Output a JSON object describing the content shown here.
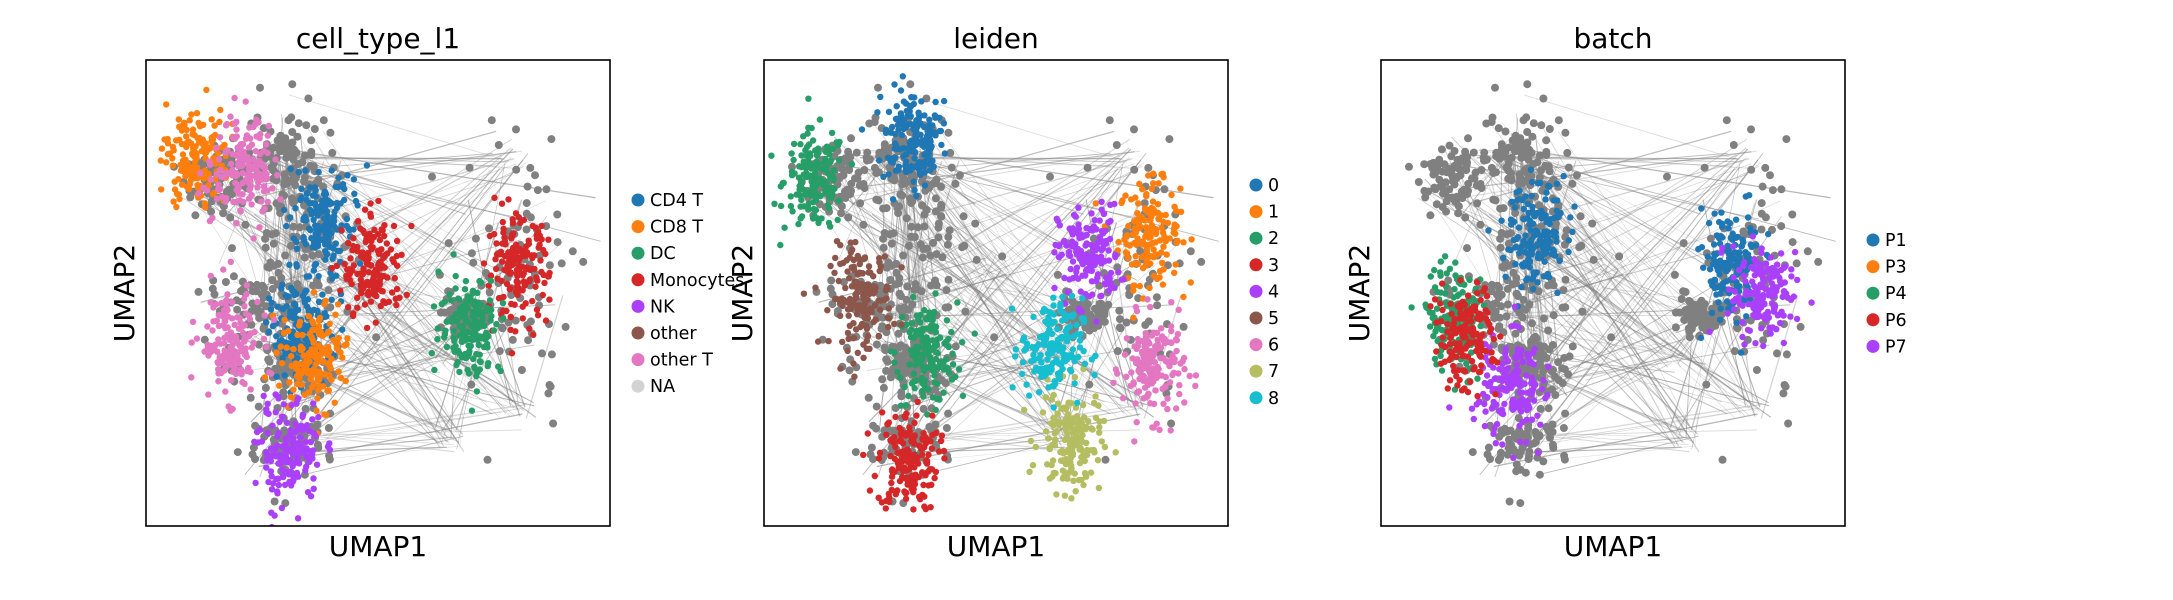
{
  "chart_data": [
    {
      "type": "scatter",
      "title": "cell_type_l1",
      "xlabel": "UMAP1",
      "ylabel": "UMAP2",
      "legend_position": "right",
      "categories": [
        "CD4 T",
        "CD8 T",
        "DC",
        "Monocytes",
        "NK",
        "other",
        "other T",
        "NA"
      ],
      "colors": [
        "#1f77b4",
        "#ff7f0e",
        "#279e68",
        "#d62728",
        "#aa40fc",
        "#8c564b",
        "#e377c2",
        "#d3d3d3"
      ],
      "groups": [
        {
          "category": "CD4 T",
          "x": 0.38,
          "y": 0.65
        },
        {
          "category": "CD4 T",
          "x": 0.33,
          "y": 0.42
        },
        {
          "category": "CD8 T",
          "x": 0.11,
          "y": 0.79
        },
        {
          "category": "CD8 T",
          "x": 0.36,
          "y": 0.36
        },
        {
          "category": "other T",
          "x": 0.21,
          "y": 0.77
        },
        {
          "category": "other T",
          "x": 0.18,
          "y": 0.39
        },
        {
          "category": "NK",
          "x": 0.31,
          "y": 0.16
        },
        {
          "category": "Monocytes",
          "x": 0.8,
          "y": 0.55
        },
        {
          "category": "DC",
          "x": 0.7,
          "y": 0.43
        },
        {
          "category": "Monocytes",
          "x": 0.49,
          "y": 0.55
        }
      ]
    },
    {
      "type": "scatter",
      "title": "leiden",
      "xlabel": "UMAP1",
      "ylabel": "UMAP2",
      "legend_position": "right",
      "categories": [
        "0",
        "1",
        "2",
        "3",
        "4",
        "5",
        "6",
        "7",
        "8"
      ],
      "colors": [
        "#1f77b4",
        "#ff7f0e",
        "#279e68",
        "#d62728",
        "#aa40fc",
        "#8c564b",
        "#e377c2",
        "#b5bd61",
        "#17becf"
      ],
      "groups": [
        {
          "category": "0",
          "x": 0.32,
          "y": 0.83
        },
        {
          "category": "1",
          "x": 0.83,
          "y": 0.63
        },
        {
          "category": "2",
          "x": 0.11,
          "y": 0.74
        },
        {
          "category": "2",
          "x": 0.35,
          "y": 0.37
        },
        {
          "category": "3",
          "x": 0.31,
          "y": 0.14
        },
        {
          "category": "4",
          "x": 0.7,
          "y": 0.58
        },
        {
          "category": "5",
          "x": 0.21,
          "y": 0.49
        },
        {
          "category": "6",
          "x": 0.84,
          "y": 0.34
        },
        {
          "category": "7",
          "x": 0.66,
          "y": 0.18
        },
        {
          "category": "8",
          "x": 0.62,
          "y": 0.38
        }
      ]
    },
    {
      "type": "scatter",
      "title": "batch",
      "xlabel": "UMAP1",
      "ylabel": "UMAP2",
      "legend_position": "right",
      "categories": [
        "P1",
        "P3",
        "P4",
        "P6",
        "P7"
      ],
      "colors": [
        "#1f77b4",
        "#ff7f0e",
        "#279e68",
        "#d62728",
        "#aa40fc"
      ],
      "groups": [
        {
          "category": "P1",
          "x": 0.33,
          "y": 0.62
        },
        {
          "category": "P1",
          "x": 0.76,
          "y": 0.56
        },
        {
          "category": "P7",
          "x": 0.82,
          "y": 0.5
        },
        {
          "category": "P7",
          "x": 0.28,
          "y": 0.3
        },
        {
          "category": "P4",
          "x": 0.16,
          "y": 0.45
        },
        {
          "category": "P6",
          "x": 0.18,
          "y": 0.4
        }
      ]
    }
  ]
}
